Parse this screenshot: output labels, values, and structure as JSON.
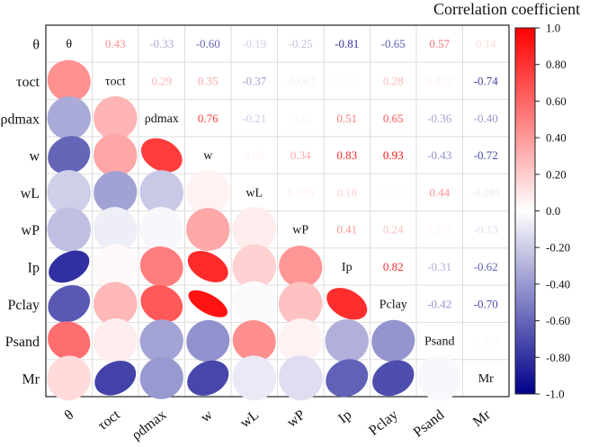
{
  "chart_data": {
    "type": "heatmap",
    "subtype": "correlation-matrix",
    "lower_style": "ellipse",
    "upper_style": "number",
    "variables": [
      "θ",
      "τoct",
      "ρdmax",
      "w",
      "wL",
      "wP",
      "Ip",
      "Pclay",
      "Psand",
      "Mr"
    ],
    "matrix": [
      [
        1.0,
        0.43,
        -0.33,
        -0.6,
        -0.19,
        -0.25,
        -0.81,
        -0.65,
        0.57,
        0.14
      ],
      [
        0.43,
        1.0,
        0.29,
        0.35,
        -0.37,
        -0.067,
        0.029,
        0.28,
        0.072,
        -0.74
      ],
      [
        -0.33,
        0.29,
        1.0,
        0.76,
        -0.21,
        -0.03,
        0.51,
        0.65,
        -0.36,
        -0.4
      ],
      [
        -0.6,
        0.35,
        0.76,
        1.0,
        0.05,
        0.34,
        0.83,
        0.93,
        -0.43,
        -0.72
      ],
      [
        -0.19,
        -0.37,
        -0.21,
        0.05,
        1.0,
        0.076,
        0.18,
        -0.021,
        0.44,
        -0.081
      ],
      [
        -0.25,
        -0.067,
        -0.03,
        0.34,
        0.076,
        1.0,
        0.41,
        0.24,
        0.05,
        -0.13
      ],
      [
        -0.81,
        0.029,
        0.51,
        0.83,
        0.18,
        0.41,
        1.0,
        0.82,
        -0.31,
        -0.62
      ],
      [
        -0.65,
        0.28,
        0.65,
        0.93,
        -0.021,
        0.24,
        0.82,
        1.0,
        -0.42,
        -0.7
      ],
      [
        0.57,
        0.072,
        -0.36,
        -0.43,
        0.44,
        0.05,
        -0.31,
        -0.42,
        1.0,
        -0.027
      ],
      [
        0.14,
        -0.74,
        -0.4,
        -0.72,
        -0.081,
        -0.13,
        -0.62,
        -0.7,
        -0.027,
        1.0
      ]
    ],
    "upper_labels": [
      [
        "θ",
        "0.43",
        "-0.33",
        "-0.60",
        "-0.19",
        "-0.25",
        "-0.81",
        "-0.65",
        "0.57",
        "0.14"
      ],
      [
        "",
        "τoct",
        "0.29",
        "0.35",
        "-0.37",
        "-0.067",
        "0.029",
        "0.28",
        "0.072",
        "-0.74"
      ],
      [
        "",
        "",
        "ρdmax",
        "0.76",
        "-0.21",
        "-0.03",
        "0.51",
        "0.65",
        "-0.36",
        "-0.40"
      ],
      [
        "",
        "",
        "",
        "w",
        "0.05",
        "0.34",
        "0.83",
        "0.93",
        "-0.43",
        "-0.72"
      ],
      [
        "",
        "",
        "",
        "",
        "wL",
        "0.076",
        "0.18",
        "-0.021",
        "0.44",
        "-0.081"
      ],
      [
        "",
        "",
        "",
        "",
        "",
        "wP",
        "0.41",
        "0.24",
        "0.050",
        "-0.13"
      ],
      [
        "",
        "",
        "",
        "",
        "",
        "",
        "Ip",
        "0.82",
        "-0.31",
        "-0.62"
      ],
      [
        "",
        "",
        "",
        "",
        "",
        "",
        "",
        "Pclay",
        "-0.42",
        "-0.70"
      ],
      [
        "",
        "",
        "",
        "",
        "",
        "",
        "",
        "",
        "Psand",
        "-0.027"
      ],
      [
        "",
        "",
        "",
        "",
        "",
        "",
        "",
        "",
        "",
        "Mr"
      ]
    ],
    "colorbar": {
      "title": "Correlation coefficient",
      "range": [
        -1.0,
        1.0
      ],
      "ticks": [
        "1.0",
        "0.80",
        "0.60",
        "0.40",
        "0.20",
        "0.0",
        "-0.20",
        "-0.40",
        "-0.60",
        "-0.80",
        "-1.0"
      ],
      "colors": {
        "positive": "#ff0000",
        "neutral": "#ffffff",
        "negative": "#00008b"
      }
    }
  }
}
